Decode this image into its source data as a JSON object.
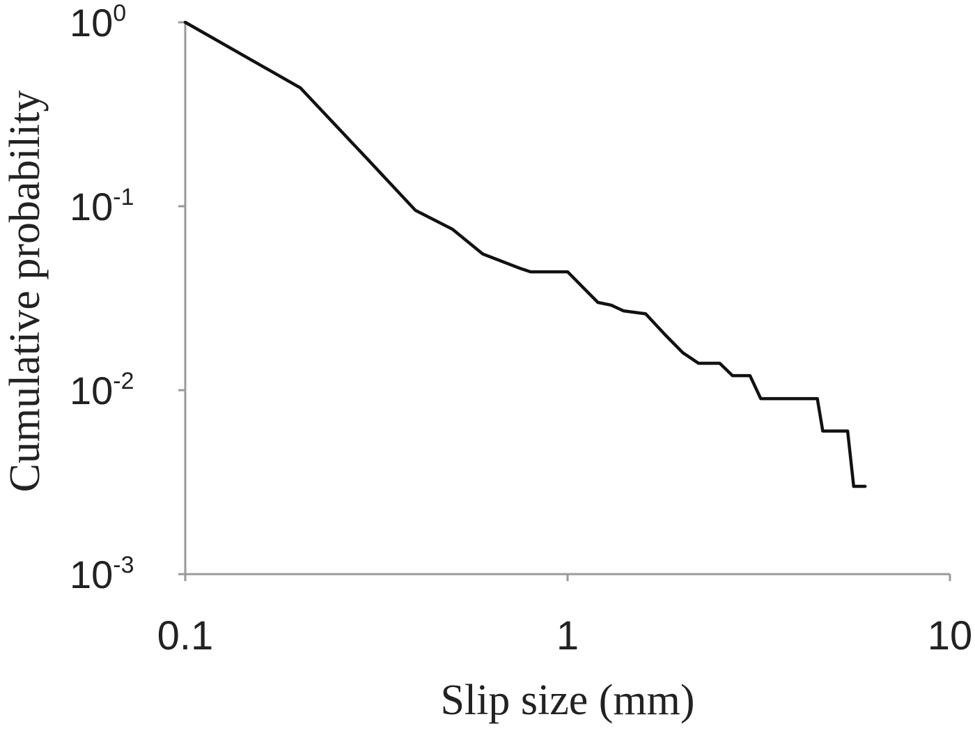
{
  "chart_data": {
    "type": "line",
    "xlabel": "Slip size (mm)",
    "ylabel": "Cumulative probability",
    "x_scale": "log",
    "y_scale": "log",
    "xlim": [
      0.1,
      10
    ],
    "ylim": [
      0.001,
      1
    ],
    "x_ticks": [
      {
        "value": 0.1,
        "label": "0.1"
      },
      {
        "value": 1,
        "label": "1"
      },
      {
        "value": 10,
        "label": "10"
      }
    ],
    "y_ticks": [
      {
        "value": 1,
        "base": "10",
        "exp": "0"
      },
      {
        "value": 0.1,
        "base": "10",
        "exp": "-1"
      },
      {
        "value": 0.01,
        "base": "10",
        "exp": "-2"
      },
      {
        "value": 0.001,
        "base": "10",
        "exp": "-3"
      }
    ],
    "grid": false,
    "line_color": "#111111",
    "series": [
      {
        "x": [
          0.1,
          0.2,
          0.3,
          0.4,
          0.5,
          0.6,
          0.75,
          0.8,
          1.0,
          1.1,
          1.2,
          1.3,
          1.4,
          1.6,
          1.8,
          2.0,
          2.2,
          2.5,
          2.7,
          3.0,
          3.2,
          3.4,
          4.0,
          4.5,
          4.65,
          5.4,
          5.6,
          6.0
        ],
        "y": [
          1.0,
          0.44,
          0.18,
          0.095,
          0.075,
          0.055,
          0.046,
          0.044,
          0.044,
          0.036,
          0.03,
          0.029,
          0.027,
          0.026,
          0.02,
          0.016,
          0.014,
          0.014,
          0.012,
          0.012,
          0.009,
          0.009,
          0.009,
          0.009,
          0.006,
          0.006,
          0.003,
          0.003
        ]
      }
    ]
  }
}
